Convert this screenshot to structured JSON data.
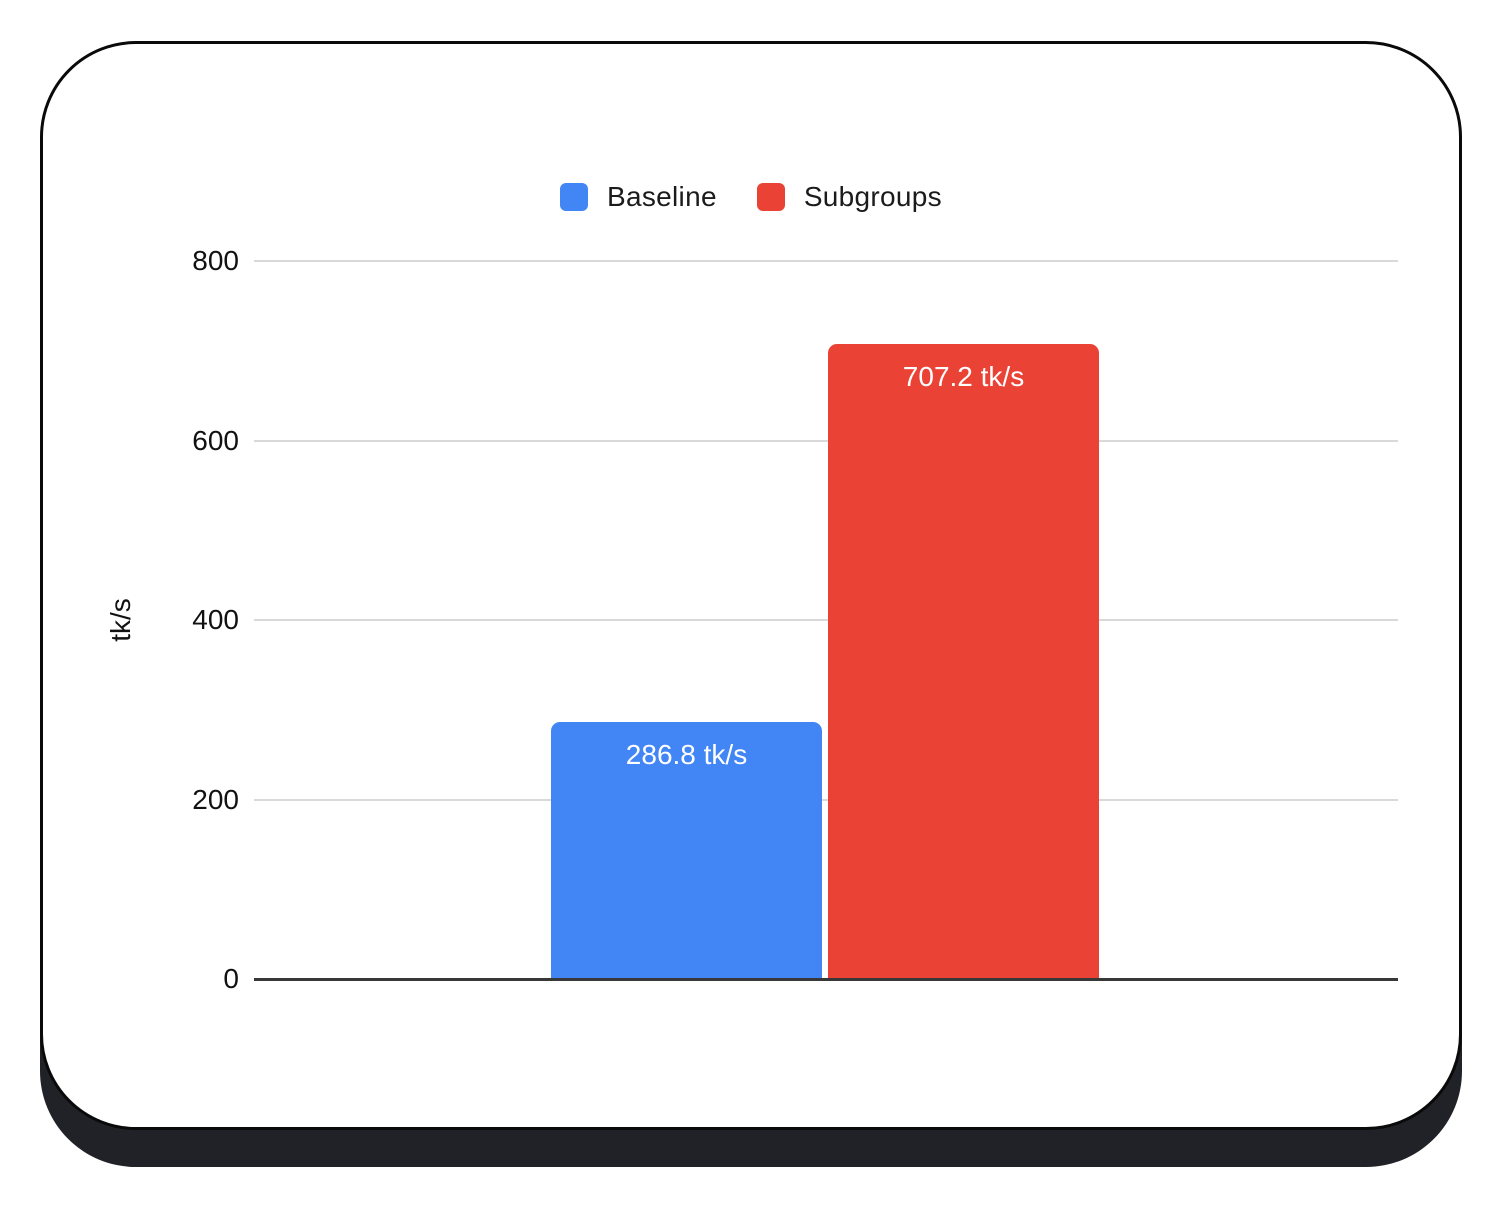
{
  "chart_data": {
    "type": "bar",
    "title": "",
    "categories": [
      ""
    ],
    "series": [
      {
        "name": "Baseline",
        "values": [
          286.8
        ],
        "color": "#4285F4",
        "data_label": "286.8 tk/s"
      },
      {
        "name": "Subgroups",
        "values": [
          707.2
        ],
        "color": "#EA4335",
        "data_label": "707.2 tk/s"
      }
    ],
    "xlabel": "",
    "ylabel": "tk/s",
    "ylim": [
      0,
      800
    ],
    "yticks": [
      0,
      200,
      400,
      600,
      800
    ],
    "grid": true,
    "legend_position": "top",
    "data_label_color": "#ffffff"
  },
  "colors": {
    "card_background": "#ffffff",
    "card_border": "#0a0a0a",
    "card_shadow": "#212227",
    "grid_line": "#d9d9d9",
    "axis_line": "#383838",
    "tick_text": "#111111",
    "legend_text": "#1b1b1b"
  }
}
